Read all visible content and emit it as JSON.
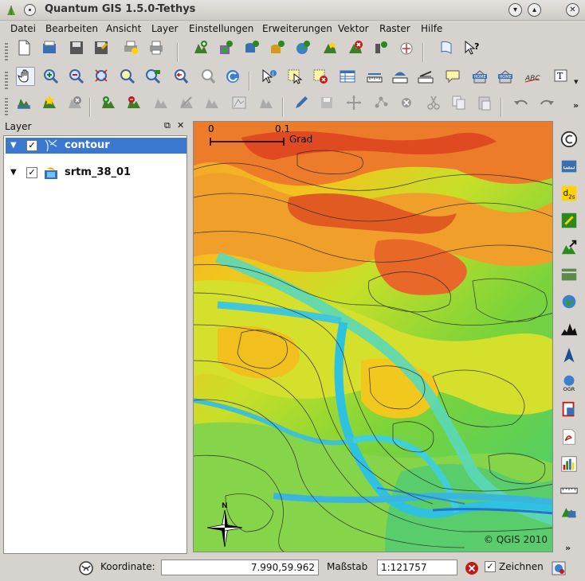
{
  "window": {
    "title": "Quantum GIS 1.5.0-Tethys"
  },
  "menu": [
    "Datei",
    "Bearbeiten",
    "Ansicht",
    "Layer",
    "Einstellungen",
    "Erweiterungen",
    "Vektor",
    "Raster",
    "Hilfe"
  ],
  "layers_panel": {
    "title": "Layer",
    "layers": [
      {
        "name": "contour",
        "checked": true,
        "selected": true
      },
      {
        "name": "srtm_38_01",
        "checked": true,
        "selected": false
      }
    ]
  },
  "map": {
    "scale_start": "0",
    "scale_end": "0.1",
    "scale_unit": "Grad",
    "north_label": "N",
    "copyright": "© QGIS 2010"
  },
  "statusbar": {
    "coord_label": "Koordinate:",
    "coord_value": "7.990,59.962",
    "scale_label": "Maßstab",
    "scale_value": "1:121757",
    "render_label": "Zeichnen",
    "render_checked": true
  },
  "colors": {
    "selection": "#3a78d0",
    "window_bg": "#d6d3ce"
  }
}
